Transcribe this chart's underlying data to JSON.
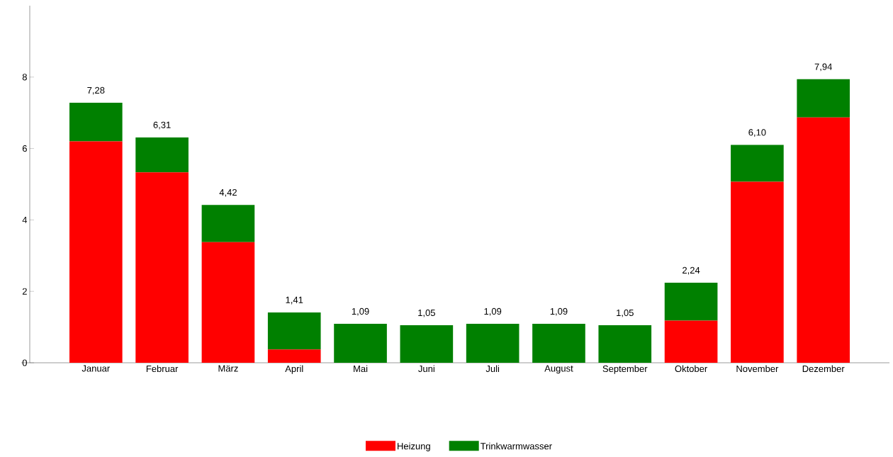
{
  "chart_data": {
    "type": "bar",
    "stacked": true,
    "categories": [
      "Januar",
      "Februar",
      "März",
      "April",
      "Mai",
      "Juni",
      "Juli",
      "August",
      "September",
      "Oktober",
      "November",
      "Dezember"
    ],
    "series": [
      {
        "name": "Heizung",
        "color": "#ff0000",
        "values": [
          6.2,
          5.33,
          3.38,
          0.37,
          0,
          0,
          0,
          0,
          0,
          1.18,
          5.07,
          6.87
        ]
      },
      {
        "name": "Trinkwarmwasser",
        "color": "#008000",
        "values": [
          1.08,
          0.98,
          1.04,
          1.04,
          1.09,
          1.05,
          1.09,
          1.09,
          1.05,
          1.06,
          1.03,
          1.07
        ]
      }
    ],
    "totals": [
      "7,28",
      "6,31",
      "4,42",
      "1,41",
      "1,09",
      "1,05",
      "1,09",
      "1,09",
      "1,05",
      "2,24",
      "6,10",
      "7,94"
    ],
    "ylim": [
      0,
      10
    ],
    "yticks": [
      0,
      2,
      4,
      6,
      8
    ],
    "grid": false,
    "legend": "bottom"
  }
}
